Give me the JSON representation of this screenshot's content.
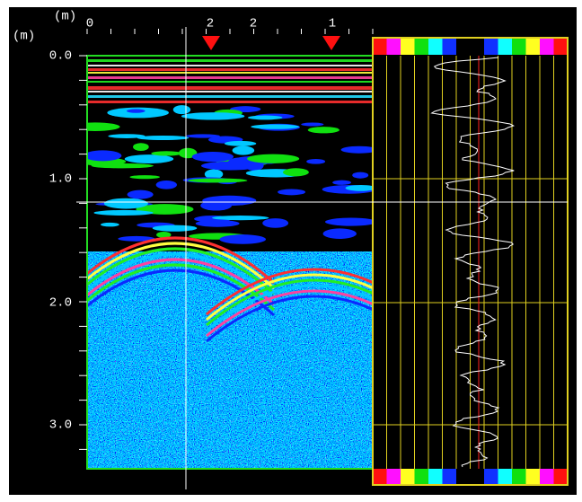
{
  "depth_unit": "(m)",
  "distance_unit": "(m)",
  "distance_labels": [
    "0",
    "2",
    "2",
    "1"
  ],
  "depth_labels": [
    "0.0",
    "1.0",
    "2.0",
    "3.0"
  ]
}
